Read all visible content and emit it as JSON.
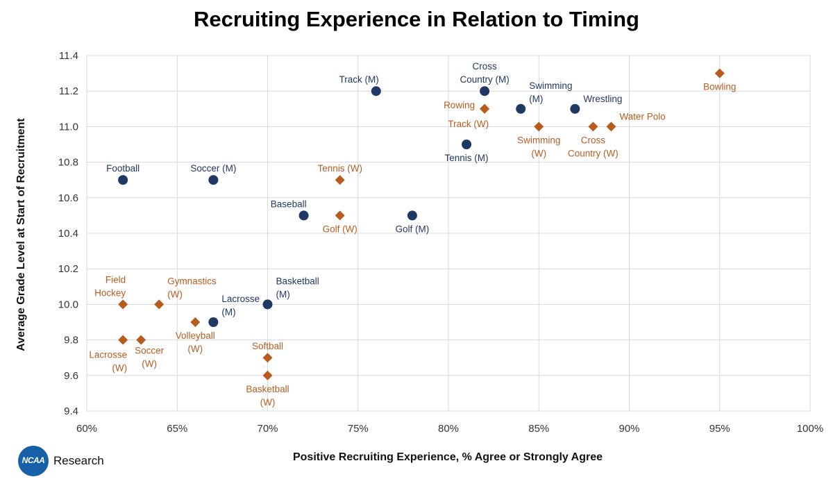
{
  "chart_data": {
    "type": "scatter",
    "title": "Recruiting Experience in Relation to Timing",
    "xlabel": "Positive Recruiting Experience, % Agree or Strongly Agree",
    "ylabel": "Average Grade Level at Start of Recruitment",
    "xlim": [
      60,
      100
    ],
    "ylim": [
      9.4,
      11.4
    ],
    "x_ticks": [
      "60%",
      "65%",
      "70%",
      "75%",
      "80%",
      "85%",
      "90%",
      "95%",
      "100%"
    ],
    "y_ticks": [
      "9.4",
      "9.6",
      "9.8",
      "10.0",
      "10.2",
      "10.4",
      "10.6",
      "10.8",
      "11.0",
      "11.2",
      "11.4"
    ],
    "grid": true,
    "colors": {
      "men": "#1f3864",
      "women": "#b85c1e"
    },
    "series": [
      {
        "marker": "circle",
        "color": "#1f3864",
        "points": [
          {
            "label": [
              "Football"
            ],
            "x": 62,
            "y": 10.7,
            "pos": "above"
          },
          {
            "label": [
              "Soccer (M)"
            ],
            "x": 67,
            "y": 10.7,
            "pos": "above"
          },
          {
            "label": [
              "Baseball"
            ],
            "x": 72,
            "y": 10.5,
            "pos": "above-left"
          },
          {
            "label": [
              "Track (M)"
            ],
            "x": 76,
            "y": 11.2,
            "pos": "above-left"
          },
          {
            "label": [
              "Golf (M)"
            ],
            "x": 78,
            "y": 10.5,
            "pos": "below"
          },
          {
            "label": [
              "Tennis (M)"
            ],
            "x": 81,
            "y": 10.9,
            "pos": "below"
          },
          {
            "label": [
              "Cross",
              "Country (M)"
            ],
            "x": 82,
            "y": 11.2,
            "pos": "above"
          },
          {
            "label": [
              "Swimming",
              "(M)"
            ],
            "x": 84,
            "y": 11.1,
            "pos": "above-right"
          },
          {
            "label": [
              "Wrestling"
            ],
            "x": 87,
            "y": 11.1,
            "pos": "above-right"
          },
          {
            "label": [
              "Lacrosse",
              "(M)"
            ],
            "x": 67,
            "y": 9.9,
            "pos": "above-right"
          },
          {
            "label": [
              "Basketball",
              "(M)"
            ],
            "x": 70,
            "y": 10.0,
            "pos": "above-right"
          }
        ]
      },
      {
        "marker": "diamond",
        "color": "#b85c1e",
        "points": [
          {
            "label": [
              "Bowling"
            ],
            "x": 95,
            "y": 11.3,
            "pos": "below"
          },
          {
            "label": [
              "Rowing"
            ],
            "x": 82,
            "y": 11.1,
            "pos": "left"
          },
          {
            "label": [
              "Track (W)"
            ],
            "x": 82,
            "y": 11.1,
            "pos": "below-left"
          },
          {
            "label": [
              "Swimming",
              "(W)"
            ],
            "x": 85,
            "y": 11.0,
            "pos": "below"
          },
          {
            "label": [
              "Cross",
              "Country (W)"
            ],
            "x": 88,
            "y": 11.0,
            "pos": "below"
          },
          {
            "label": [
              "Water Polo"
            ],
            "x": 89,
            "y": 11.0,
            "pos": "above-right"
          },
          {
            "label": [
              "Tennis (W)"
            ],
            "x": 74,
            "y": 10.7,
            "pos": "above"
          },
          {
            "label": [
              "Golf (W)"
            ],
            "x": 74,
            "y": 10.5,
            "pos": "below"
          },
          {
            "label": [
              "Field",
              "Hockey"
            ],
            "x": 62,
            "y": 10.0,
            "pos": "above-left"
          },
          {
            "label": [
              "Gymnastics",
              "(W)"
            ],
            "x": 64,
            "y": 10.0,
            "pos": "above-right"
          },
          {
            "label": [
              "Volleyball",
              "(W)"
            ],
            "x": 66,
            "y": 9.9,
            "pos": "below"
          },
          {
            "label": [
              "Lacrosse",
              "(W)"
            ],
            "x": 62,
            "y": 9.8,
            "pos": "below-left"
          },
          {
            "label": [
              "Soccer",
              "(W)"
            ],
            "x": 63,
            "y": 9.8,
            "pos": "below-right"
          },
          {
            "label": [
              "Softball"
            ],
            "x": 70,
            "y": 9.7,
            "pos": "above"
          },
          {
            "label": [
              "Basketball",
              "(W)"
            ],
            "x": 70,
            "y": 9.6,
            "pos": "below"
          }
        ]
      }
    ]
  },
  "logo": {
    "badge_text": "NCAA",
    "text": "Research"
  }
}
